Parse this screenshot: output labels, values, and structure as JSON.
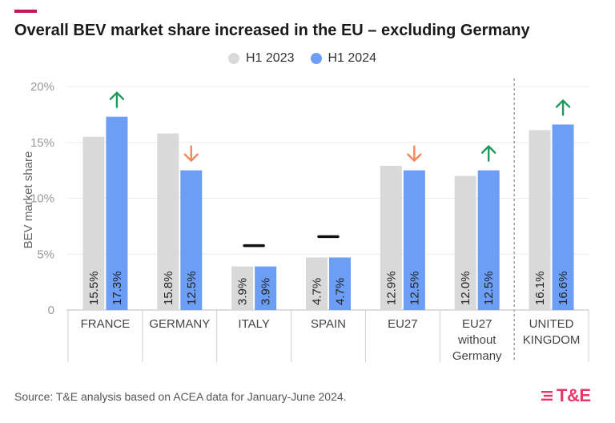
{
  "header": {
    "title": "Overall BEV market share increased in the EU – excluding Germany"
  },
  "colors": {
    "h1_2023": "#d9d9d9",
    "h1_2024": "#6d9ef5",
    "up": "#1a9b5c",
    "down": "#f08a5d",
    "flat": "#111111",
    "accent": "#c2185b",
    "brand": "#e8356a"
  },
  "legend": {
    "items": [
      "H1 2023",
      "H1 2024"
    ]
  },
  "chart_data": {
    "type": "bar",
    "ylabel": "BEV market share",
    "yticks": [
      "0",
      "5%",
      "10%",
      "15%",
      "20%"
    ],
    "ylim": [
      0,
      20
    ],
    "categories": [
      "FRANCE",
      "GERMANY",
      "ITALY",
      "SPAIN",
      "EU27",
      "EU27 without Germany",
      "UNITED KINGDOM"
    ],
    "category_lines": [
      [
        "FRANCE"
      ],
      [
        "GERMANY"
      ],
      [
        "ITALY"
      ],
      [
        "SPAIN"
      ],
      [
        "EU27"
      ],
      [
        "EU27",
        "without",
        "Germany"
      ],
      [
        "UNITED",
        "KINGDOM"
      ]
    ],
    "series": [
      {
        "name": "H1 2023",
        "values": [
          15.5,
          15.8,
          3.9,
          4.7,
          12.9,
          12.0,
          16.1
        ],
        "labels": [
          "15.5%",
          "15.8%",
          "3.9%",
          "4.7%",
          "12.9%",
          "12.0%",
          "16.1%"
        ]
      },
      {
        "name": "H1 2024",
        "values": [
          17.3,
          12.5,
          3.9,
          4.7,
          12.5,
          12.5,
          16.6
        ],
        "labels": [
          "17.3%",
          "12.5%",
          "3.9%",
          "4.7%",
          "12.5%",
          "12.5%",
          "16.6%"
        ]
      }
    ],
    "trend": [
      "up",
      "down",
      "flat",
      "flat",
      "down",
      "up",
      "up"
    ],
    "grid": true,
    "legend_position": "top"
  },
  "footer": {
    "source": "Source: T&E analysis based on ACEA data for January-June 2024.",
    "logo_text": "T&E"
  }
}
